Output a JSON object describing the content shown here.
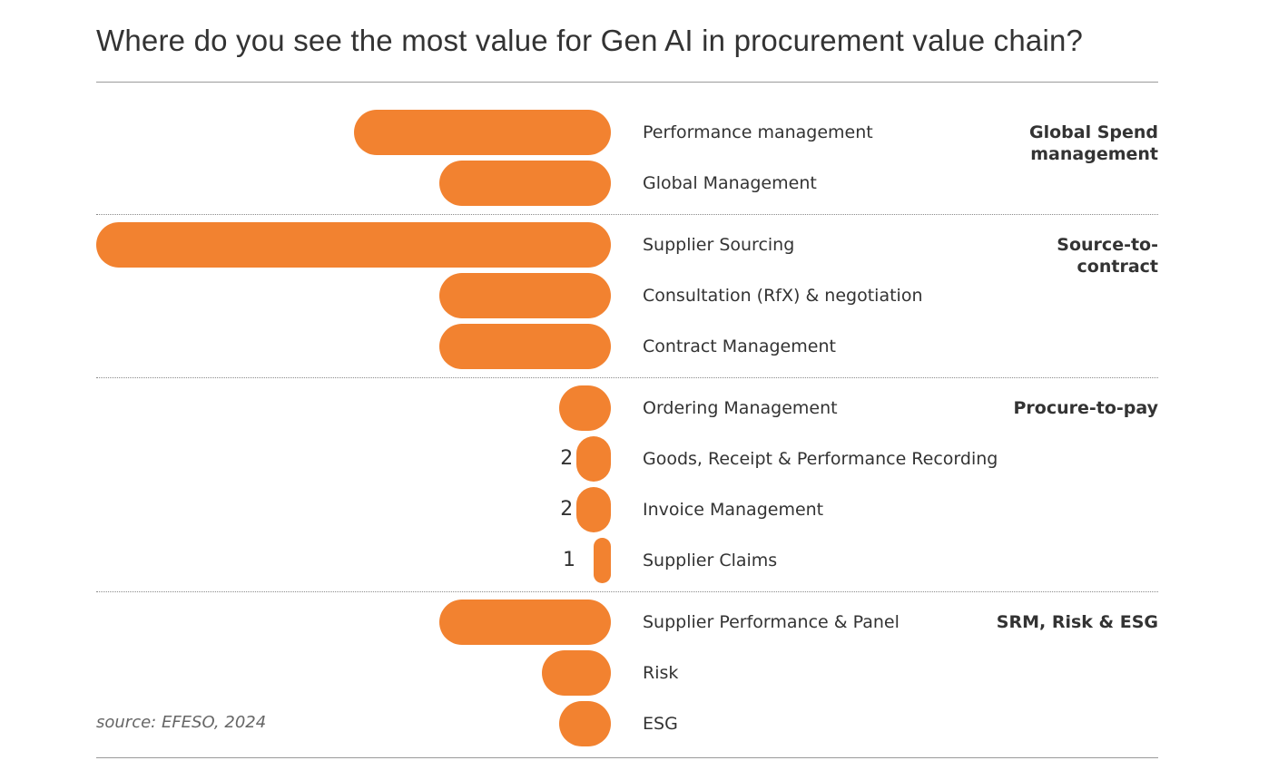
{
  "chart_data": {
    "type": "bar",
    "title": "Where do you see the most value for Gen AI in procurement value chain?",
    "source": "source: EFESO, 2024",
    "color": "#f28230",
    "xlim": [
      0,
      30
    ],
    "groups": [
      {
        "name": "Global Spend management",
        "categories": [
          "Performance management",
          "Global Management"
        ],
        "values": [
          15,
          10
        ]
      },
      {
        "name": "Source-to-contract",
        "categories": [
          "Supplier Sourcing",
          "Consultation (RfX) & negotiation",
          "Contract Management"
        ],
        "values": [
          30,
          10,
          10
        ]
      },
      {
        "name": "Procure-to-pay",
        "categories": [
          "Ordering Management",
          "Goods, Receipt & Performance Recording",
          "Invoice Management",
          "Supplier Claims"
        ],
        "values": [
          3,
          2,
          2,
          1
        ]
      },
      {
        "name": "SRM, Risk & ESG",
        "categories": [
          "Supplier Performance & Panel",
          "Risk",
          "ESG"
        ],
        "values": [
          10,
          4,
          3
        ]
      }
    ]
  }
}
